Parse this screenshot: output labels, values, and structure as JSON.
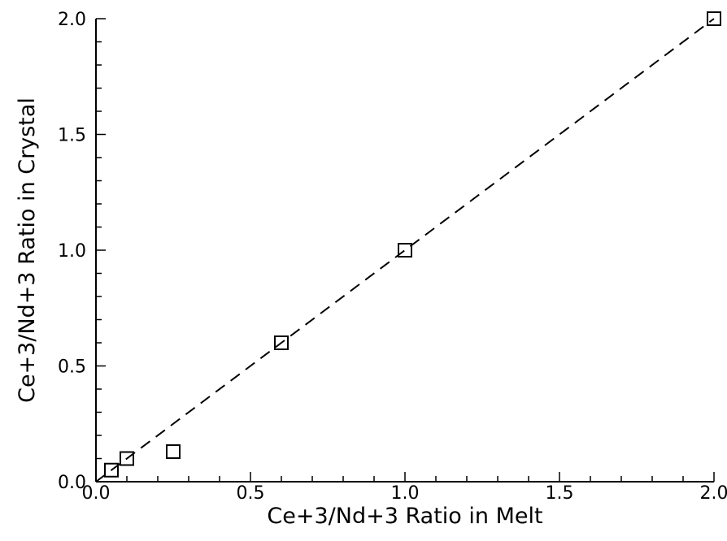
{
  "chart_data": {
    "type": "scatter",
    "title": "",
    "xlabel": "Ce+3/Nd+3 Ratio in Melt",
    "ylabel": "Ce+3/Nd+3 Ratio in Crystal",
    "xlim": [
      0.0,
      2.0
    ],
    "ylim": [
      0.0,
      2.0
    ],
    "x_ticks": [
      "0.0",
      "0.5",
      "1.0",
      "1.5",
      "2.0"
    ],
    "y_ticks": [
      "0.0",
      "0.5",
      "1.0",
      "1.5",
      "2.0"
    ],
    "x_tick_values": [
      0.0,
      0.5,
      1.0,
      1.5,
      2.0
    ],
    "y_tick_values": [
      0.0,
      0.5,
      1.0,
      1.5,
      2.0
    ],
    "minor_tick_step": 0.1,
    "grid": false,
    "marker": "open-square",
    "series": [
      {
        "points": [
          {
            "x": 0.05,
            "y": 0.05
          },
          {
            "x": 0.1,
            "y": 0.1
          },
          {
            "x": 0.25,
            "y": 0.13
          },
          {
            "x": 0.6,
            "y": 0.6
          },
          {
            "x": 1.0,
            "y": 1.0
          },
          {
            "x": 2.0,
            "y": 2.0
          }
        ]
      }
    ],
    "reference_line": {
      "style": "dashed",
      "from": {
        "x": 0.0,
        "y": 0.0
      },
      "to": {
        "x": 2.0,
        "y": 2.0
      }
    }
  }
}
